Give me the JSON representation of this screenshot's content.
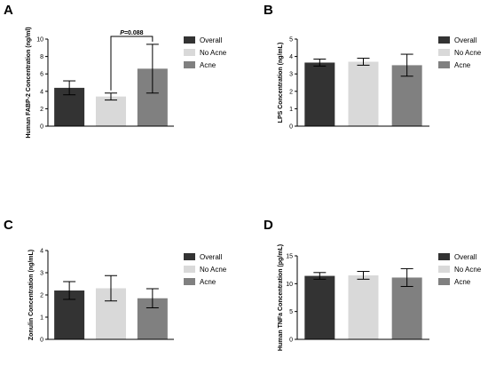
{
  "colors": {
    "Overall": "#333333",
    "No Acne": "#d9d9d9",
    "Acne": "#808080"
  },
  "chart_data": [
    {
      "panel": "A",
      "type": "bar",
      "categories": [
        "Overall",
        "No Acne",
        "Acne"
      ],
      "values": [
        4.4,
        3.4,
        6.6
      ],
      "errors": [
        0.8,
        0.4,
        2.8
      ],
      "ylabel": "Human FABP-2 Concentration (ng/ml)",
      "ylim": [
        0,
        10
      ],
      "yticks": [
        "0",
        "2",
        "4",
        "6",
        "8",
        "10"
      ],
      "legend": [
        "Overall",
        "No Acne",
        "Acne"
      ],
      "legend_position": "right",
      "annotation": {
        "text": "P=0.088",
        "between": [
          "No Acne",
          "Acne"
        ]
      }
    },
    {
      "panel": "B",
      "type": "bar",
      "categories": [
        "Overall",
        "No Acne",
        "Acne"
      ],
      "values": [
        3.65,
        3.7,
        3.5
      ],
      "errors": [
        0.2,
        0.2,
        0.63
      ],
      "ylabel": "LPS Concentration (ng/mL)",
      "ylim": [
        0,
        5
      ],
      "yticks": [
        "0",
        "1",
        "2",
        "3",
        "4",
        "5"
      ],
      "legend": [
        "Overall",
        "No Acne",
        "Acne"
      ],
      "legend_position": "right"
    },
    {
      "panel": "C",
      "type": "bar",
      "categories": [
        "Overall",
        "No Acne",
        "Acne"
      ],
      "values": [
        2.2,
        2.3,
        1.85
      ],
      "errors": [
        0.4,
        0.57,
        0.43
      ],
      "ylabel": "Zonulin Concentration (ng/mL)",
      "ylim": [
        0,
        4
      ],
      "yticks": [
        "0",
        "1",
        "2",
        "3",
        "4"
      ],
      "legend": [
        "Overall",
        "No Acne",
        "Acne"
      ],
      "legend_position": "right"
    },
    {
      "panel": "D",
      "type": "bar",
      "categories": [
        "Overall",
        "No Acne",
        "Acne"
      ],
      "values": [
        11.4,
        11.5,
        11.1
      ],
      "errors": [
        0.6,
        0.7,
        1.6
      ],
      "ylabel": "Human TNFa Concentration (pg/mL)",
      "ylim": [
        0,
        15
      ],
      "yticks": [
        "0",
        "5",
        "10",
        "15"
      ],
      "legend": [
        "Overall",
        "No Acne",
        "Acne"
      ],
      "legend_position": "right"
    }
  ]
}
